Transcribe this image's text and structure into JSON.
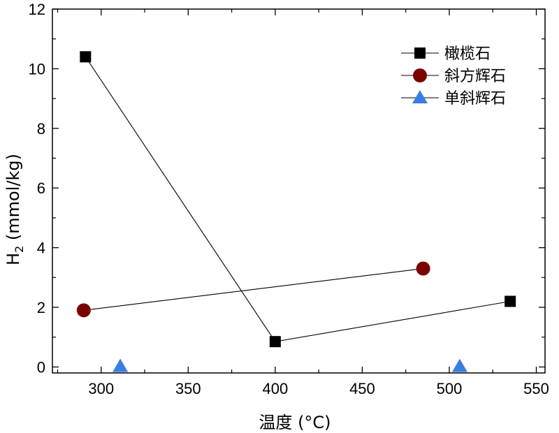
{
  "chart_data": {
    "type": "scatter",
    "xlabel": "温度 (°C)",
    "ylabel_main": "H",
    "ylabel_sub": "2",
    "ylabel_rest": " (mmol/kg)",
    "xlim": [
      272,
      555
    ],
    "ylim": [
      -0.2,
      12
    ],
    "xticks": [
      300,
      350,
      400,
      450,
      500,
      550
    ],
    "yticks": [
      0,
      2,
      4,
      6,
      8,
      10,
      12
    ],
    "legend_position": "top-right",
    "series": [
      {
        "name": "橄榄石",
        "marker": "square",
        "color": "#000000",
        "connected": true,
        "x": [
          291,
          400,
          535
        ],
        "y": [
          10.4,
          0.85,
          2.2
        ]
      },
      {
        "name": "斜方辉石",
        "marker": "circle",
        "color": "#7a0000",
        "connected": true,
        "x": [
          290,
          485
        ],
        "y": [
          1.9,
          3.3
        ]
      },
      {
        "name": "单斜辉石",
        "marker": "triangle",
        "color": "#3a7de0",
        "connected": false,
        "x": [
          311,
          506
        ],
        "y": [
          0.02,
          0.02
        ]
      }
    ]
  }
}
